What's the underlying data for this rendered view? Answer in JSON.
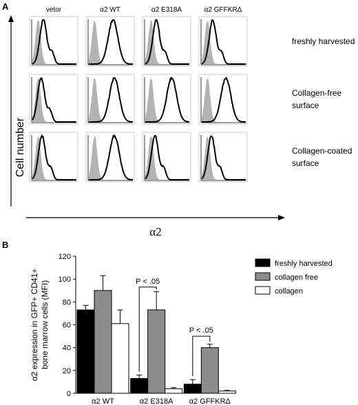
{
  "panel_a": {
    "letter": "A",
    "columns": [
      "vetor",
      "α2 WT",
      "α2 E318A",
      "α2 GFFKRΔ"
    ],
    "rows": [
      {
        "label_lines": [
          "freshly harvested"
        ]
      },
      {
        "label_lines": [
          "Collagen-free",
          "surface"
        ]
      },
      {
        "label_lines": [
          "Collagen-coated",
          "surface"
        ]
      }
    ],
    "y_axis_label": "Cell number",
    "x_axis_label": "α2",
    "histograms": {
      "shaded_peak": 0.13,
      "open_peaks": [
        [
          0.25,
          0.55,
          0.25,
          0.25
        ],
        [
          0.2,
          0.58,
          0.6,
          0.55
        ],
        [
          0.22,
          0.58,
          0.22,
          0.22
        ]
      ]
    }
  },
  "panel_b": {
    "letter": "B",
    "chart_data": {
      "type": "bar",
      "categories": [
        "α2 WT",
        "α2 E318A",
        "α2 GFFKRΔ"
      ],
      "series": [
        {
          "name": "freshly harvested",
          "color": "#000000",
          "values": [
            73,
            13,
            8
          ],
          "errors": [
            4,
            3,
            4
          ]
        },
        {
          "name": "collagen free",
          "color": "#8c8c8c",
          "values": [
            90,
            73,
            40
          ],
          "errors": [
            13,
            16,
            3
          ]
        },
        {
          "name": "collagen",
          "color": "#ffffff",
          "values": [
            61,
            4,
            2
          ],
          "errors": [
            12,
            1,
            0.5
          ]
        }
      ],
      "ylabel_lines": [
        "α2 expression in  GFP+ CD41+",
        "bone marrow cells (MFI)"
      ],
      "ylim": [
        0,
        120
      ],
      "yticks": [
        0,
        20,
        40,
        60,
        80,
        100,
        120
      ],
      "annotations": [
        {
          "category_index": 1,
          "text": "P < .05",
          "y": 93
        },
        {
          "category_index": 2,
          "text": "P < .05",
          "y": 50
        }
      ],
      "legend_position": "top-right"
    }
  }
}
